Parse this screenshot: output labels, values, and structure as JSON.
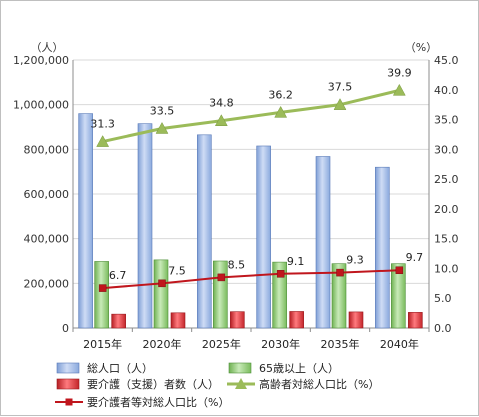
{
  "chart_data": {
    "type": "bar",
    "categories": [
      "2015年",
      "2020年",
      "2025年",
      "2030年",
      "2035年",
      "2040年"
    ],
    "left_axis": {
      "unit_label": "（人）",
      "ylim": [
        0,
        1200000
      ],
      "ticks": [
        "0",
        "200,000",
        "400,000",
        "600,000",
        "800,000",
        "1,000,000",
        "1,200,000"
      ]
    },
    "right_axis": {
      "unit_label": "（%）",
      "ylim": [
        0,
        45
      ],
      "ticks": [
        "0.0",
        "5.0",
        "10.0",
        "15.0",
        "20.0",
        "25.0",
        "30.0",
        "35.0",
        "40.0",
        "45.0"
      ]
    },
    "grid": true,
    "legend_position": "bottom",
    "series": [
      {
        "name": "総人口（人）",
        "type": "bar",
        "axis": "left",
        "color": "#a9c4ee",
        "values": [
          960000,
          915000,
          865000,
          815000,
          768000,
          720000
        ]
      },
      {
        "name": "65歳以上（人）",
        "type": "bar",
        "axis": "left",
        "color": "#9fd48a",
        "values": [
          298000,
          305000,
          300000,
          295000,
          288000,
          288000
        ]
      },
      {
        "name": "要介護（支援）者数（人）",
        "type": "bar",
        "axis": "left",
        "color": "#e8343a",
        "values": [
          62000,
          68000,
          73000,
          74000,
          72000,
          70000
        ]
      },
      {
        "name": "高齢者対総人口比（%）",
        "type": "line",
        "axis": "right",
        "color": "#9bbb59",
        "values": [
          31.3,
          33.5,
          34.8,
          36.2,
          37.5,
          39.9
        ],
        "labels": [
          "31.3",
          "33.5",
          "34.8",
          "36.2",
          "37.5",
          "39.9"
        ]
      },
      {
        "name": "要介護者等対総人口比（%）",
        "type": "line",
        "axis": "right",
        "color": "#c0161d",
        "values": [
          6.7,
          7.5,
          8.5,
          9.1,
          9.3,
          9.7
        ],
        "labels": [
          "6.7",
          "7.5",
          "8.5",
          "9.1",
          "9.3",
          "9.7"
        ]
      }
    ]
  }
}
